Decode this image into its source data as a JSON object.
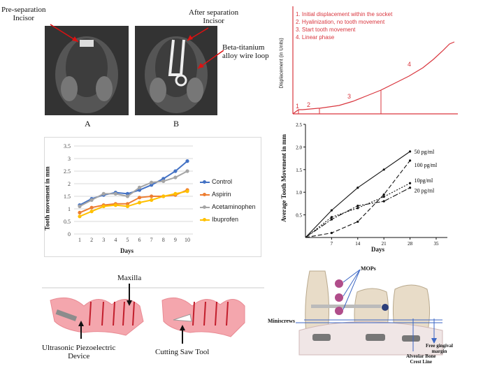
{
  "xray": {
    "label_pre": "Pre-separation\nIncisor",
    "label_after": "After separation\nIncisor",
    "label_wire": "Beta-titanium\nalloy wire loop",
    "caption_a": "A",
    "caption_b": "B"
  },
  "displacement": {
    "ylabel": "Displacement (in Units)",
    "list": [
      "1. Initial displacement within the socket",
      "2. Hyalinization, no tooth movement",
      "3. Start tooth movement",
      "4. Linear phase"
    ],
    "phase_labels": [
      "1",
      "2",
      "3",
      "4"
    ],
    "color": "#d9363e"
  },
  "surgery": {
    "maxilla": "Maxilla",
    "piezo": "Ultrasonic Piezoelectric\nDevice",
    "saw": "Cutting Saw Tool"
  },
  "mops": {
    "mops": "MOPs",
    "miniscrews": "Miniscrews",
    "gingival": "Free gingival\nmargin",
    "bone": "Alveolar Bone\nCrest Line"
  },
  "chart_data": [
    {
      "type": "line",
      "title": "",
      "xlabel": "Days",
      "ylabel": "Tooth movement in mm",
      "ylim": [
        0,
        3.5
      ],
      "yticks": [
        "0",
        "0.5",
        "1",
        "1.5",
        "2",
        "2.5",
        "3",
        "3.5"
      ],
      "x": [
        1,
        2,
        3,
        4,
        5,
        6,
        7,
        8,
        9,
        10
      ],
      "grid": true,
      "legend": "right",
      "series": [
        {
          "name": "Control",
          "color": "#4472c4",
          "values": [
            1.15,
            1.4,
            1.55,
            1.65,
            1.6,
            1.75,
            1.95,
            2.2,
            2.5,
            2.9
          ]
        },
        {
          "name": "Aspirin",
          "color": "#ed7d31",
          "values": [
            0.85,
            1.05,
            1.15,
            1.2,
            1.2,
            1.45,
            1.5,
            1.5,
            1.55,
            1.75
          ]
        },
        {
          "name": "Acetaminophen",
          "color": "#a5a5a5",
          "values": [
            1.1,
            1.35,
            1.6,
            1.6,
            1.5,
            1.85,
            2.05,
            2.1,
            2.25,
            2.5
          ]
        },
        {
          "name": "Ibuprofen",
          "color": "#ffc000",
          "values": [
            0.7,
            0.9,
            1.1,
            1.15,
            1.1,
            1.25,
            1.35,
            1.5,
            1.6,
            1.7
          ]
        }
      ]
    },
    {
      "type": "line",
      "title": "",
      "xlabel": "Days",
      "ylabel": "Average Tooth Movement in mm",
      "ylim": [
        0,
        2.5
      ],
      "yticks": [
        "0.5",
        "1.0",
        "1.5",
        "2.0",
        "2.5"
      ],
      "xticks": [
        "7",
        "14",
        "21",
        "28",
        "35"
      ],
      "grid": false,
      "series": [
        {
          "name": "50 pg/ml",
          "x": [
            0,
            7,
            14,
            21,
            28
          ],
          "values": [
            0,
            0.6,
            1.1,
            1.5,
            1.9
          ]
        },
        {
          "name": "100 pg/ml",
          "x": [
            0,
            7,
            14,
            21,
            28
          ],
          "values": [
            0,
            0.1,
            0.35,
            0.95,
            1.7
          ]
        },
        {
          "name": "10pg/ml",
          "x": [
            0,
            7,
            14,
            21,
            28
          ],
          "values": [
            0,
            0.45,
            0.65,
            0.9,
            1.2
          ]
        },
        {
          "name": "20 pg/ml",
          "x": [
            0,
            7,
            14,
            21,
            28
          ],
          "values": [
            0,
            0.4,
            0.7,
            0.8,
            1.1
          ]
        }
      ]
    }
  ]
}
